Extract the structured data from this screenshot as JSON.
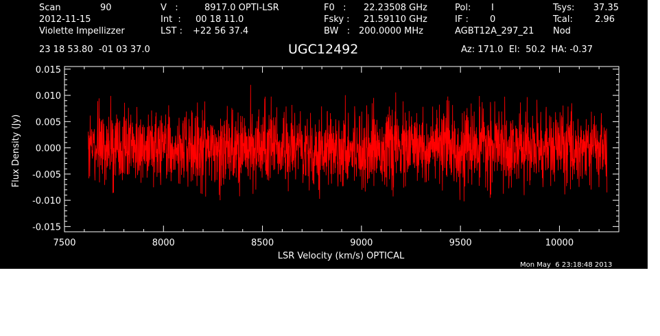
{
  "header": {
    "scan_label": "Scan",
    "scan_value": "90",
    "date": "2012-11-15",
    "observer": "Violette Impellizzer",
    "v_label": "V   :",
    "v_value": "8917.0 OPTI-LSR",
    "int_label": "Int  :",
    "int_value": "00 18 11.0",
    "lst_label": "LST :",
    "lst_value": "+22 56 37.4",
    "f0_label": "F0   :",
    "f0_value": "22.23508 GHz",
    "fsky_label": "Fsky :",
    "fsky_value": "21.59110 GHz",
    "bw_label": "BW   :",
    "bw_value": "200.0000 MHz",
    "pol_label": "Pol:",
    "pol_value": "I",
    "if_label": "IF :",
    "if_value": "0",
    "project": "AGBT12A_297_21",
    "tsys_label": "Tsys:",
    "tsys_value": "37.35",
    "tcal_label": "Tcal:",
    "tcal_value": "2.96",
    "mode": "Nod",
    "coords": "23 18 53.80  -01 03 37.0",
    "source": "UGC12492",
    "az_el_ha": "Az: 171.0  El:  50.2  HA: -0.37",
    "timestamp": "Mon May  6 23:18:48 2013"
  },
  "chart_data": {
    "type": "line",
    "xlabel": "LSR Velocity (km/s) OPTICAL",
    "ylabel": "Flux Density (Jy)",
    "xlim": [
      7500,
      10300
    ],
    "ylim": [
      -0.016,
      0.0155
    ],
    "x_ticks": [
      7500,
      8000,
      8500,
      9000,
      9500,
      10000
    ],
    "x_tick_labels": [
      "7500",
      "8000",
      "8500",
      "9000",
      "9500",
      "10000"
    ],
    "y_ticks": [
      0.015,
      0.01,
      0.005,
      0.0,
      -0.005,
      -0.01,
      -0.015
    ],
    "y_tick_labels": [
      "0.015",
      "0.010",
      "0.005",
      "0.000",
      "-0.005",
      "-0.010",
      "-0.015"
    ],
    "grid": false,
    "line_color": "#ff0000",
    "series": [
      {
        "x_range": [
          7620,
          10240
        ],
        "mean": 0.0,
        "noise_rms": 0.0035,
        "max": 0.012,
        "min": -0.0138
      }
    ]
  }
}
